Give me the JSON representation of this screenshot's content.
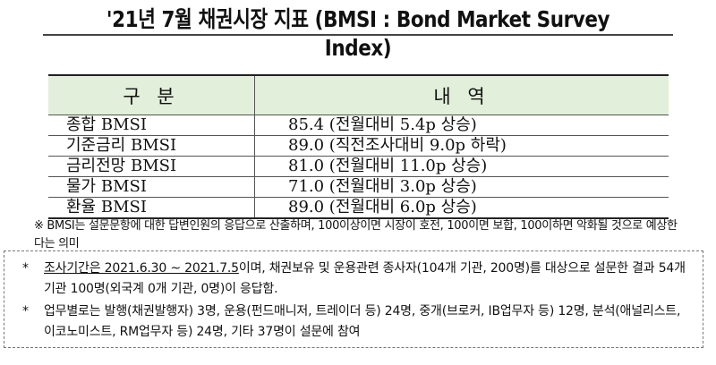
{
  "title": "'21년 7월 채권시장 지표 (BMSI : Bond Market Survey Index)",
  "table": {
    "headers": [
      "구 분",
      "내 역"
    ],
    "rows": [
      [
        "종합 BMSI",
        "85.4 (전월대비 5.4p 상승)"
      ],
      [
        "기준금리 BMSI",
        "89.0 (직전조사대비 9.0p 하락)"
      ],
      [
        "금리전망 BMSI",
        "81.0 (전월대비 11.0p 상승)"
      ],
      [
        "물가 BMSI",
        "71.0 (전월대비 3.0p 상승)"
      ],
      [
        "환율 BMSI",
        "89.0 (전월대비 6.0p 상승)"
      ]
    ]
  },
  "note": "※ BMSI는 설문문항에 대한 답변인원의 응답으로 산출하며, 100이상이면 시장이 호전, 100이면 보합, 100이하면 악화될 것으로 예상한다는 의미",
  "box": {
    "bullet": "*",
    "item1_underlined": "조사기간은 2021.6.30 ~ 2021.7.5",
    "item1_rest": "이며, 채권보유 및 운용관련 종사자(104개 기관, 200명)를 대상으로 설문한 결과 54개 기관 100명(외국계 0개 기관, 0명)이 응답함.",
    "item2": "업무별로는 발행(채권발행자) 3명, 운용(펀드매니저, 트레이더 등) 24명, 중개(브로커, IB업무자 등) 12명, 분석(애널리스트, 이코노미스트, RM업무자 등) 24명, 기타 37명이 설문에 참여"
  },
  "colors": {
    "header_bg": "#e2efda"
  }
}
